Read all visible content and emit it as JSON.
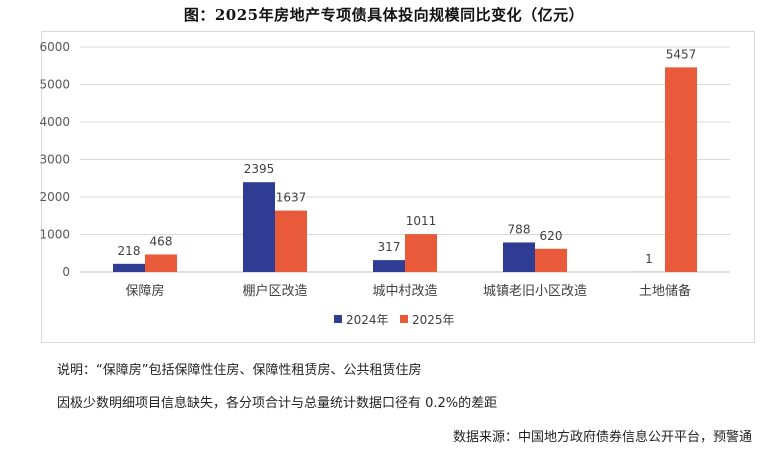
{
  "title": "图：2025年房地产专项债具体投向规模同比变化（亿元）",
  "chart_data": {
    "type": "bar",
    "categories": [
      "保障房",
      "棚户区改造",
      "城中村改造",
      "城镇老旧小区改造",
      "土地储备"
    ],
    "series": [
      {
        "name": "2024年",
        "color": "#2E3D93",
        "values": [
          218,
          2395,
          317,
          788,
          1
        ]
      },
      {
        "name": "2025年",
        "color": "#E85A3A",
        "values": [
          468,
          1637,
          1011,
          620,
          5457
        ]
      }
    ],
    "ylim": [
      0,
      6000
    ],
    "yticks": [
      "0",
      "1000",
      "2000",
      "3000",
      "4000",
      "5000",
      "6000"
    ],
    "grid": true,
    "legend_position": "bottom-center"
  },
  "notes": {
    "line1": "说明：“保障房”包括保障性住房、保障性租赁房、公共租赁住房",
    "line2": "因极少数明细项目信息缺失，各分项合计与总量统计数据口径有 0.2%的差距"
  },
  "source": "数据来源：中国地方政府债券信息公开平台，预警通"
}
